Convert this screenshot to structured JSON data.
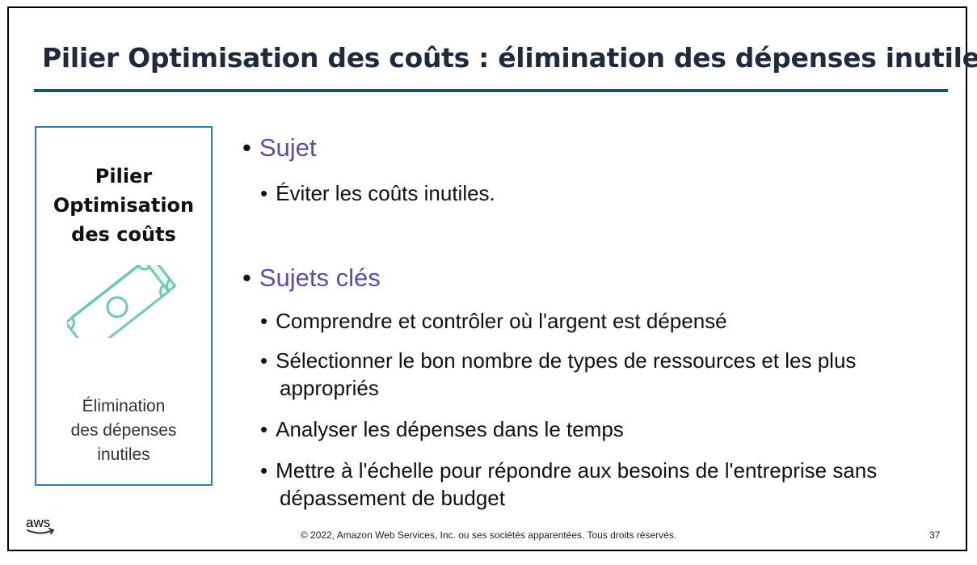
{
  "slide": {
    "title": "Pilier Optimisation des coûts : élimination des dépenses inutiles",
    "page_number": "37",
    "copyright": "© 2022, Amazon Web Services, Inc. ou ses sociétés apparentées. Tous droits réservés.",
    "logo_text": "aws"
  },
  "pillar": {
    "name_line1": "Pilier",
    "name_line2": "Optimisation",
    "name_line3": "des coûts",
    "icon": "money-bill-icon",
    "subtitle_line1": "Élimination",
    "subtitle_line2": "des dépenses",
    "subtitle_line3": "inutiles"
  },
  "content": {
    "section1": {
      "heading": "Sujet",
      "items": [
        "Éviter les coûts inutiles."
      ]
    },
    "section2": {
      "heading": "Sujets clés",
      "items": [
        "Comprendre et contrôler où l'argent est dépensé",
        "Sélectionner le bon nombre de types de ressources et les plus appropriés",
        "Analyser les dépenses dans le temps",
        "Mettre à l'échelle pour répondre aux besoins de l'entreprise sans dépassement de budget"
      ]
    }
  },
  "colors": {
    "title": "#1f2b3d",
    "rule": "#0b5c57",
    "heading": "#5a4ea6",
    "box_border": "#2f7fa8",
    "icon": "#6fc9b3"
  }
}
